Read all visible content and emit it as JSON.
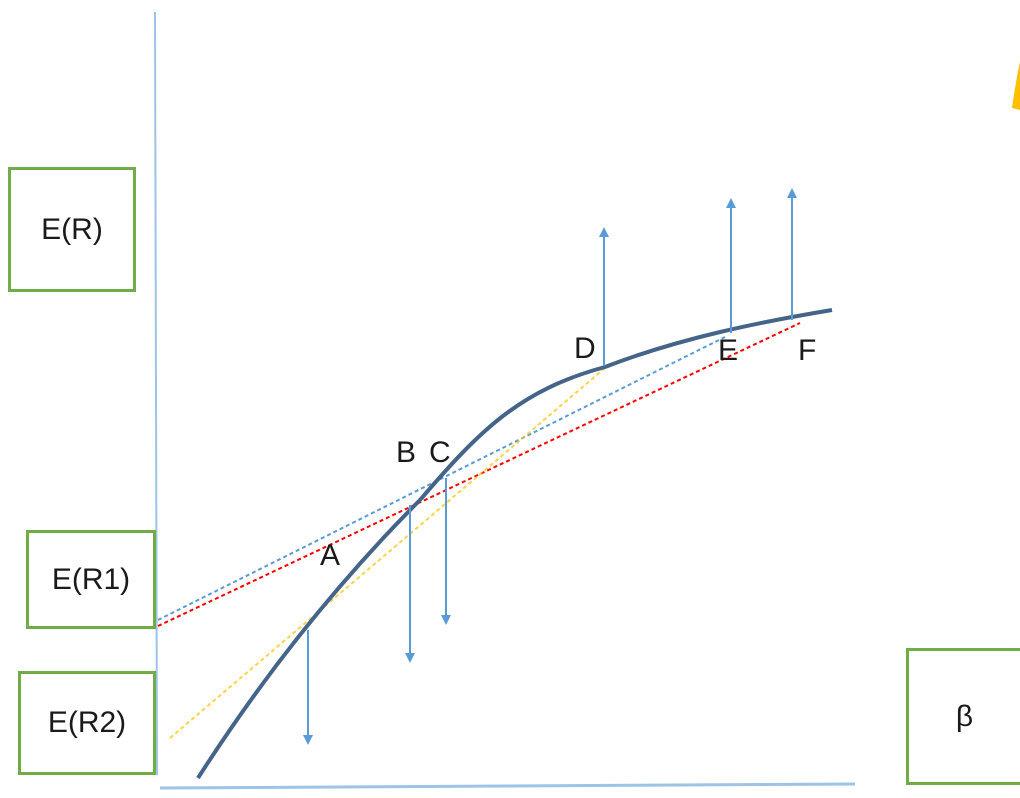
{
  "labels": {
    "y_axis": "E(R)",
    "r1": "E(R1)",
    "r2": "E(R2)",
    "x_axis": "β"
  },
  "points": {
    "A": "A",
    "B": "B",
    "C": "C",
    "D": "D",
    "E": "E",
    "F": "F"
  },
  "colors": {
    "axis": "#9dc3e6",
    "curve": "#44648a",
    "arrow": "#5b9bd5",
    "box_border": "#70ad47",
    "red_line": "#ff0000",
    "blue_line": "#5b9bd5",
    "orange_line": "#ffc000",
    "shape_accent": "#ffc000"
  }
}
